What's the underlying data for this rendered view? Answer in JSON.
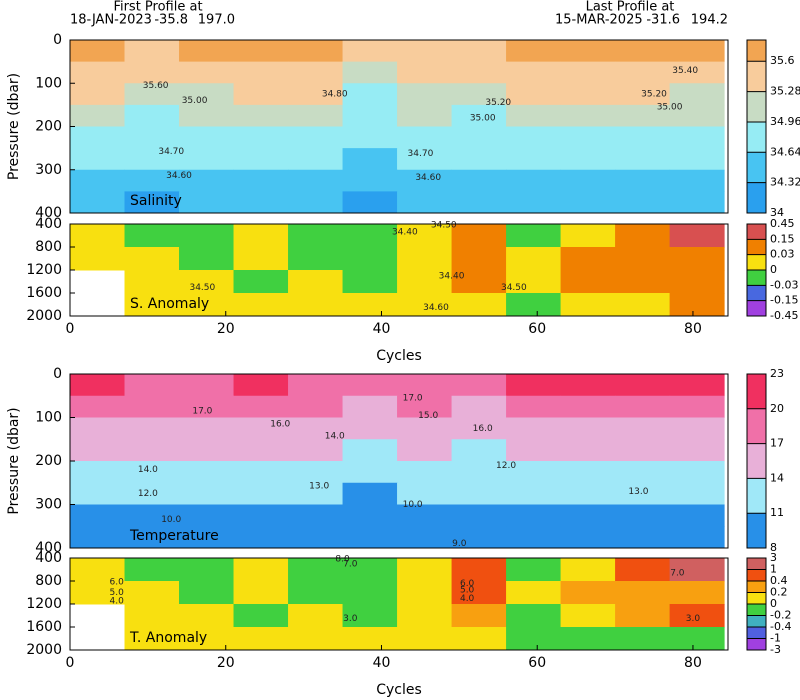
{
  "header": {
    "first_title": "First Profile at",
    "first_date": "18-JAN-2023",
    "first_lat": "-35.8",
    "first_lon": "197.0",
    "last_title": "Last Profile at",
    "last_date": "15-MAR-2025",
    "last_lat": "-31.6",
    "last_lon": "194.2"
  },
  "chart_data": [
    {
      "type": "heatmap",
      "label": "Salinity",
      "ylabel": "Pressure (dbar)",
      "y_inverted": true,
      "xlim": [
        0,
        84.5
      ],
      "ylim": [
        0,
        400
      ],
      "yticks": [
        0,
        100,
        200,
        300,
        400
      ],
      "x_edges": [
        0,
        7,
        14,
        21,
        28,
        35,
        42,
        49,
        56,
        63,
        70,
        77,
        84
      ],
      "y_edges": [
        0,
        50,
        100,
        150,
        200,
        250,
        300,
        350,
        400
      ],
      "values": [
        [
          35.62,
          35.55,
          35.6,
          35.65,
          35.6,
          35.35,
          35.55,
          35.45,
          35.62,
          35.6,
          35.6,
          35.62
        ],
        [
          35.45,
          35.4,
          35.45,
          35.55,
          35.5,
          35.1,
          35.4,
          35.3,
          35.55,
          35.5,
          35.45,
          35.45
        ],
        [
          35.3,
          35.1,
          35.2,
          35.35,
          35.3,
          34.9,
          35.2,
          35.1,
          35.4,
          35.3,
          35.3,
          35.25
        ],
        [
          35.1,
          34.95,
          35.0,
          35.1,
          35.05,
          34.8,
          35.0,
          34.95,
          35.2,
          35.1,
          35.1,
          35.05
        ],
        [
          34.9,
          34.8,
          34.85,
          34.9,
          34.85,
          34.7,
          34.8,
          34.8,
          34.95,
          34.9,
          34.9,
          34.85
        ],
        [
          34.7,
          34.65,
          34.7,
          34.72,
          34.68,
          34.55,
          34.65,
          34.65,
          34.75,
          34.72,
          34.7,
          34.68
        ],
        [
          34.55,
          34.5,
          34.55,
          34.58,
          34.52,
          34.4,
          34.5,
          34.5,
          34.6,
          34.58,
          34.55,
          34.52
        ],
        [
          34.4,
          34.3,
          34.4,
          34.42,
          34.38,
          34.28,
          34.35,
          34.35,
          34.45,
          34.42,
          34.4,
          34.38
        ]
      ],
      "colorbar": {
        "ticks": [
          34,
          34.32,
          34.64,
          34.96,
          35.28,
          35.6
        ],
        "colors": [
          "#2aa0ee",
          "#48c4f2",
          "#96ecf4",
          "#c8dcc4",
          "#f8cc9c",
          "#f2a552"
        ]
      },
      "annotations": [
        {
          "text": "35.60",
          "x": 11,
          "y": 105
        },
        {
          "text": "34.80",
          "x": 34,
          "y": 125
        },
        {
          "text": "35.00",
          "x": 16,
          "y": 140
        },
        {
          "text": "34.70",
          "x": 13,
          "y": 258
        },
        {
          "text": "34.60",
          "x": 14,
          "y": 313
        },
        {
          "text": "34.70",
          "x": 45,
          "y": 262
        },
        {
          "text": "34.60",
          "x": 46,
          "y": 318
        },
        {
          "text": "35.20",
          "x": 55,
          "y": 145
        },
        {
          "text": "35.00",
          "x": 53,
          "y": 180
        },
        {
          "text": "35.40",
          "x": 79,
          "y": 70
        },
        {
          "text": "35.20",
          "x": 75,
          "y": 125
        },
        {
          "text": "35.00",
          "x": 77,
          "y": 155
        }
      ]
    },
    {
      "type": "heatmap",
      "label": "S. Anomaly",
      "xlabel": "Cycles",
      "y_inverted": true,
      "xlim": [
        0,
        84.5
      ],
      "ylim": [
        400,
        2000
      ],
      "xticks": [
        0,
        20,
        40,
        60,
        80
      ],
      "yticks": [
        400,
        800,
        1200,
        1600,
        2000
      ],
      "x_edges": [
        0,
        7,
        14,
        21,
        28,
        35,
        42,
        49,
        56,
        63,
        70,
        77,
        84
      ],
      "y_edges": [
        400,
        800,
        1200,
        1600,
        2000
      ],
      "values": [
        [
          0.01,
          -0.01,
          -0.02,
          0.02,
          -0.01,
          -0.02,
          0.01,
          0.05,
          -0.01,
          0.02,
          0.08,
          0.2
        ],
        [
          0.02,
          0.01,
          -0.01,
          0.01,
          -0.02,
          -0.01,
          0.02,
          0.06,
          0.01,
          0.03,
          0.05,
          0.04
        ],
        [
          null,
          0.02,
          0.01,
          -0.01,
          0.01,
          -0.01,
          0.02,
          0.04,
          0.02,
          0.05,
          0.06,
          0.1
        ],
        [
          null,
          0.02,
          0.02,
          0.01,
          0.02,
          0.02,
          0.01,
          0.01,
          -0.01,
          0.02,
          0.02,
          0.04
        ]
      ],
      "colorbar": {
        "ticks": [
          -0.45,
          -0.15,
          -0.03,
          0,
          0.03,
          0.15,
          0.45
        ],
        "colors": [
          "#a040e0",
          "#4868e0",
          "#40d040",
          "#f8e010",
          "#f08000",
          "#d85050"
        ]
      },
      "annotations": [
        {
          "text": "34.50",
          "x": 48,
          "y": 420
        },
        {
          "text": "34.40",
          "x": 43,
          "y": 540
        },
        {
          "text": "34.50",
          "x": 17,
          "y": 1500
        },
        {
          "text": "34.40",
          "x": 49,
          "y": 1300
        },
        {
          "text": "34.50",
          "x": 57,
          "y": 1500
        },
        {
          "text": "34.60",
          "x": 47,
          "y": 1850
        }
      ]
    },
    {
      "type": "heatmap",
      "label": "Temperature",
      "ylabel": "Pressure (dbar)",
      "y_inverted": true,
      "xlim": [
        0,
        84.5
      ],
      "ylim": [
        0,
        400
      ],
      "yticks": [
        0,
        100,
        200,
        300,
        400
      ],
      "x_edges": [
        0,
        7,
        14,
        21,
        28,
        35,
        42,
        49,
        56,
        63,
        70,
        77,
        84
      ],
      "y_edges": [
        0,
        50,
        100,
        150,
        200,
        250,
        300,
        350,
        400
      ],
      "values": [
        [
          20.5,
          19,
          19.5,
          20,
          19.5,
          17,
          19,
          18,
          20.5,
          20,
          20,
          20.5
        ],
        [
          18.5,
          17.5,
          18,
          18.5,
          18,
          15.5,
          17.5,
          16.5,
          18.5,
          18,
          18,
          18
        ],
        [
          16.5,
          15.5,
          16,
          16.5,
          16,
          14,
          15.5,
          15,
          16.5,
          16,
          16,
          16
        ],
        [
          15,
          14,
          14.5,
          15,
          14.5,
          13,
          14,
          13.5,
          15,
          14.5,
          14.5,
          14.5
        ],
        [
          13.5,
          12.5,
          13,
          13.5,
          13,
          12,
          12.5,
          12.5,
          13.5,
          13,
          13,
          13
        ],
        [
          12,
          11.3,
          11.8,
          12,
          11.5,
          10.5,
          11.3,
          11.3,
          12,
          11.8,
          11.8,
          11.5
        ],
        [
          10.8,
          10.2,
          10.5,
          10.8,
          10.3,
          9.5,
          10,
          10.2,
          10.8,
          10.5,
          10.5,
          10.3
        ],
        [
          9.8,
          9.3,
          9.6,
          9.8,
          9.4,
          8.8,
          9.2,
          9.3,
          9.8,
          9.6,
          9.6,
          9.4
        ]
      ],
      "colorbar": {
        "ticks": [
          8,
          11,
          14,
          17,
          20,
          23
        ],
        "colors": [
          "#2890e8",
          "#a0e8f8",
          "#e8b0d8",
          "#f070a8",
          "#f03060"
        ]
      },
      "annotations": [
        {
          "text": "17.0",
          "x": 17,
          "y": 85
        },
        {
          "text": "16.0",
          "x": 27,
          "y": 115
        },
        {
          "text": "14.0",
          "x": 10,
          "y": 220
        },
        {
          "text": "12.0",
          "x": 10,
          "y": 275
        },
        {
          "text": "10.0",
          "x": 13,
          "y": 335
        },
        {
          "text": "13.0",
          "x": 32,
          "y": 258
        },
        {
          "text": "14.0",
          "x": 34,
          "y": 142
        },
        {
          "text": "15.0",
          "x": 46,
          "y": 95
        },
        {
          "text": "17.0",
          "x": 44,
          "y": 55
        },
        {
          "text": "16.0",
          "x": 53,
          "y": 125
        },
        {
          "text": "12.0",
          "x": 56,
          "y": 210
        },
        {
          "text": "13.0",
          "x": 73,
          "y": 270
        },
        {
          "text": "10.0",
          "x": 44,
          "y": 300
        },
        {
          "text": "9.0",
          "x": 50,
          "y": 390
        }
      ]
    },
    {
      "type": "heatmap",
      "label": "T. Anomaly",
      "xlabel": "Cycles",
      "y_inverted": true,
      "xlim": [
        0,
        84.5
      ],
      "ylim": [
        400,
        2000
      ],
      "xticks": [
        0,
        20,
        40,
        60,
        80
      ],
      "yticks": [
        400,
        800,
        1200,
        1600,
        2000
      ],
      "x_edges": [
        0,
        7,
        14,
        21,
        28,
        35,
        42,
        49,
        56,
        63,
        70,
        77,
        84
      ],
      "y_edges": [
        400,
        800,
        1200,
        1600,
        2000
      ],
      "values": [
        [
          0.1,
          -0.1,
          -0.15,
          0.15,
          -0.1,
          -0.2,
          0.1,
          0.5,
          -0.1,
          0.15,
          0.6,
          1.2
        ],
        [
          0.15,
          0.1,
          -0.1,
          0.1,
          -0.15,
          -0.1,
          0.15,
          0.45,
          0.1,
          0.25,
          0.35,
          0.3
        ],
        [
          null,
          0.15,
          0.1,
          -0.1,
          0.1,
          -0.1,
          0.15,
          0.3,
          -0.1,
          0.1,
          0.3,
          0.5
        ],
        [
          null,
          0.15,
          0.15,
          0.1,
          0.15,
          0.15,
          0.1,
          0.1,
          -0.1,
          -0.1,
          -0.1,
          -0.05
        ]
      ],
      "colorbar": {
        "ticks": [
          -3,
          -1,
          -0.4,
          -0.2,
          0,
          0.2,
          0.4,
          1,
          3
        ],
        "colors": [
          "#a040e0",
          "#5060e0",
          "#40b0c0",
          "#40d040",
          "#f8e010",
          "#f8a010",
          "#f05010",
          "#d06060"
        ]
      },
      "annotations": [
        {
          "text": "8.0",
          "x": 35,
          "y": 420
        },
        {
          "text": "7.0",
          "x": 36,
          "y": 500
        },
        {
          "text": "6.0",
          "x": 6,
          "y": 820
        },
        {
          "text": "5.0",
          "x": 6,
          "y": 1000
        },
        {
          "text": "4.0",
          "x": 6,
          "y": 1150
        },
        {
          "text": "3.0",
          "x": 36,
          "y": 1450
        },
        {
          "text": "6.0",
          "x": 51,
          "y": 840
        },
        {
          "text": "5.0",
          "x": 51,
          "y": 960
        },
        {
          "text": "4.0",
          "x": 51,
          "y": 1100
        },
        {
          "text": "7.0",
          "x": 78,
          "y": 660
        },
        {
          "text": "3.0",
          "x": 80,
          "y": 1450
        }
      ]
    }
  ]
}
